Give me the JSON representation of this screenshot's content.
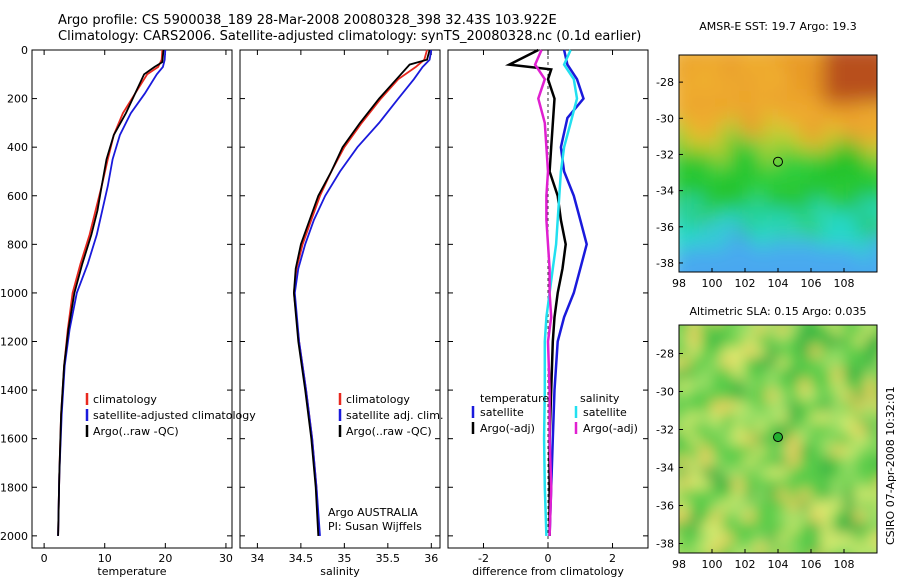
{
  "header": {
    "line1": "Argo profile: CS 5900038_189 28-Mar-2008 20080328_398 32.43S 103.922E",
    "line2": "Climatology: CARS2006. Satellite-adjusted climatology: synTS_20080328.nc (0.1d earlier)"
  },
  "side_label": "CSIRO 07-Apr-2008 10:32:01",
  "colors": {
    "climatology": "#e8281e",
    "satellite": "#1a1adc",
    "argo": "#000000",
    "sal_satellite": "#22e0f0",
    "sal_argo": "#e020d0"
  },
  "chart_data": [
    {
      "type": "line",
      "xlabel": "temperature",
      "ylabel": "",
      "xlim": [
        -2,
        31
      ],
      "ylim": [
        0,
        2050
      ],
      "xticks": [
        0,
        10,
        20,
        30
      ],
      "yticks": [
        0,
        200,
        400,
        600,
        800,
        1000,
        1200,
        1400,
        1600,
        1800,
        2000
      ],
      "legend": [
        "climatology",
        "satellite-adjusted climatology",
        "Argo(..raw -QC)"
      ],
      "series": [
        {
          "name": "climatology",
          "color": "#e8281e",
          "x": [
            19.5,
            19.4,
            18.8,
            17.0,
            15.0,
            13.0,
            11.5,
            10.5,
            9.5,
            8.5,
            7.5,
            6.0,
            4.7,
            3.9,
            3.3,
            2.8,
            2.5,
            2.3
          ],
          "y": [
            0,
            40,
            70,
            100,
            180,
            260,
            350,
            450,
            560,
            660,
            760,
            880,
            1000,
            1150,
            1300,
            1500,
            1750,
            2000
          ]
        },
        {
          "name": "satellite-adjusted climatology",
          "color": "#1a1adc",
          "x": [
            20.0,
            19.9,
            19.6,
            18.6,
            16.6,
            14.3,
            12.5,
            11.3,
            10.5,
            9.6,
            8.7,
            7.2,
            5.4,
            4.2,
            3.4,
            2.9,
            2.5,
            2.3
          ],
          "y": [
            0,
            40,
            70,
            100,
            180,
            260,
            350,
            450,
            560,
            660,
            760,
            880,
            1000,
            1150,
            1300,
            1500,
            1750,
            2000
          ]
        },
        {
          "name": "Argo(..raw -QC)",
          "color": "#000000",
          "x": [
            19.7,
            19.5,
            18.2,
            16.5,
            15.0,
            13.5,
            11.5,
            10.3,
            9.5,
            8.8,
            7.8,
            6.3,
            5.0,
            4.0,
            3.3,
            2.8,
            2.5,
            2.3
          ],
          "y": [
            0,
            50,
            70,
            100,
            180,
            260,
            350,
            450,
            560,
            660,
            760,
            880,
            1000,
            1150,
            1300,
            1500,
            1750,
            2000
          ]
        }
      ]
    },
    {
      "type": "line",
      "xlabel": "salinity",
      "xlim": [
        33.8,
        36.1
      ],
      "ylim": [
        0,
        2050
      ],
      "xticks": [
        34,
        34.5,
        35,
        35.5,
        36
      ],
      "legend": [
        "climatology",
        "satellite adj. clim.",
        "Argo(..raw -QC)"
      ],
      "annotation": [
        "Argo AUSTRALIA",
        "PI: Susan Wijffels"
      ],
      "series": [
        {
          "name": "climatology",
          "color": "#e8281e",
          "x": [
            35.95,
            35.92,
            35.82,
            35.62,
            35.42,
            35.2,
            35.0,
            34.85,
            34.72,
            34.62,
            34.52,
            34.45,
            34.42,
            34.48,
            34.56,
            34.63,
            34.68,
            34.71
          ],
          "y": [
            0,
            40,
            70,
            120,
            200,
            300,
            400,
            500,
            600,
            700,
            800,
            900,
            1000,
            1200,
            1400,
            1600,
            1800,
            2000
          ]
        },
        {
          "name": "satellite adj. clim.",
          "color": "#1a1adc",
          "x": [
            36.0,
            35.98,
            35.9,
            35.8,
            35.62,
            35.4,
            35.15,
            34.95,
            34.78,
            34.65,
            34.55,
            34.47,
            34.43,
            34.48,
            34.56,
            34.63,
            34.68,
            34.72
          ],
          "y": [
            0,
            40,
            70,
            120,
            200,
            300,
            400,
            500,
            600,
            700,
            800,
            900,
            1000,
            1200,
            1400,
            1600,
            1800,
            2000
          ]
        },
        {
          "name": "Argo(..raw -QC)",
          "color": "#000000",
          "x": [
            35.98,
            35.95,
            35.75,
            35.6,
            35.4,
            35.18,
            34.98,
            34.85,
            34.7,
            34.6,
            34.5,
            34.44,
            34.42,
            34.47,
            34.55,
            34.62,
            34.67,
            34.7
          ],
          "y": [
            0,
            40,
            60,
            120,
            200,
            300,
            400,
            500,
            600,
            700,
            800,
            900,
            1000,
            1200,
            1400,
            1600,
            1800,
            2000
          ]
        }
      ]
    },
    {
      "type": "line",
      "xlabel": "difference from climatology",
      "xlim": [
        -3.1,
        3.1
      ],
      "ylim": [
        0,
        2050
      ],
      "xticks": [
        -2,
        0,
        2
      ],
      "legend_left_title": "temperature",
      "legend_right_title": "salinity",
      "legend": [
        "satellite",
        "Argo(-adj)",
        "satellite",
        "Argo(-adj)"
      ],
      "series": [
        {
          "name": "satellite",
          "color": "#1a1adc",
          "x": [
            0.5,
            0.6,
            0.9,
            1.1,
            0.6,
            0.4,
            0.5,
            0.8,
            1.0,
            1.2,
            1.0,
            0.8,
            0.5,
            0.3,
            0.2,
            0.15,
            0.1,
            0.05
          ],
          "y": [
            0,
            60,
            120,
            200,
            280,
            400,
            500,
            600,
            700,
            800,
            900,
            1000,
            1100,
            1200,
            1400,
            1600,
            1800,
            2000
          ]
        },
        {
          "name": "Argo(-adj)",
          "color": "#000000",
          "x": [
            -0.3,
            -1.2,
            0.1,
            0.0,
            0.2,
            0.1,
            0.05,
            0.3,
            0.4,
            0.55,
            0.45,
            0.3,
            0.2,
            0.15,
            0.1,
            0.05,
            0.05,
            0.05
          ],
          "y": [
            0,
            60,
            80,
            120,
            200,
            400,
            500,
            600,
            700,
            800,
            900,
            1000,
            1100,
            1200,
            1400,
            1600,
            1800,
            2000
          ]
        },
        {
          "name": "satellite",
          "color": "#22e0f0",
          "x": [
            0.7,
            0.5,
            0.8,
            0.9,
            0.7,
            0.5,
            0.4,
            0.35,
            0.3,
            0.25,
            0.15,
            0.05,
            -0.05,
            -0.1,
            -0.1,
            -0.12,
            -0.1,
            -0.05
          ],
          "y": [
            0,
            60,
            120,
            200,
            300,
            400,
            500,
            600,
            700,
            800,
            900,
            1000,
            1100,
            1200,
            1400,
            1600,
            1800,
            2000
          ]
        },
        {
          "name": "Argo(-adj)",
          "color": "#e020d0",
          "x": [
            -0.2,
            -0.4,
            -0.1,
            -0.3,
            -0.1,
            -0.05,
            0.0,
            -0.05,
            -0.05,
            0.0,
            0.05,
            0.05,
            0.1,
            0.0,
            0.05,
            0.05,
            0.1,
            0.05
          ],
          "y": [
            0,
            60,
            120,
            200,
            300,
            400,
            500,
            600,
            700,
            800,
            900,
            1000,
            1100,
            1200,
            1400,
            1600,
            1800,
            2000
          ]
        }
      ]
    },
    {
      "type": "heatmap",
      "title": "AMSR-E SST: 19.7 Argo: 19.3",
      "xticks": [
        98,
        100,
        102,
        104,
        106,
        108
      ],
      "yticks": [
        -28,
        -30,
        -32,
        -34,
        -36,
        -38
      ],
      "xlim": [
        98,
        110
      ],
      "ylim": [
        -38.5,
        -26.5
      ],
      "marker": {
        "lon": 104.0,
        "lat": -32.4
      }
    },
    {
      "type": "heatmap",
      "title": "Altimetric SLA: 0.15 Argo: 0.035",
      "xticks": [
        98,
        100,
        102,
        104,
        106,
        108
      ],
      "yticks": [
        -28,
        -30,
        -32,
        -34,
        -36,
        -38
      ],
      "xlim": [
        98,
        110
      ],
      "ylim": [
        -38.5,
        -26.5
      ],
      "marker": {
        "lon": 104.0,
        "lat": -32.4
      }
    }
  ]
}
